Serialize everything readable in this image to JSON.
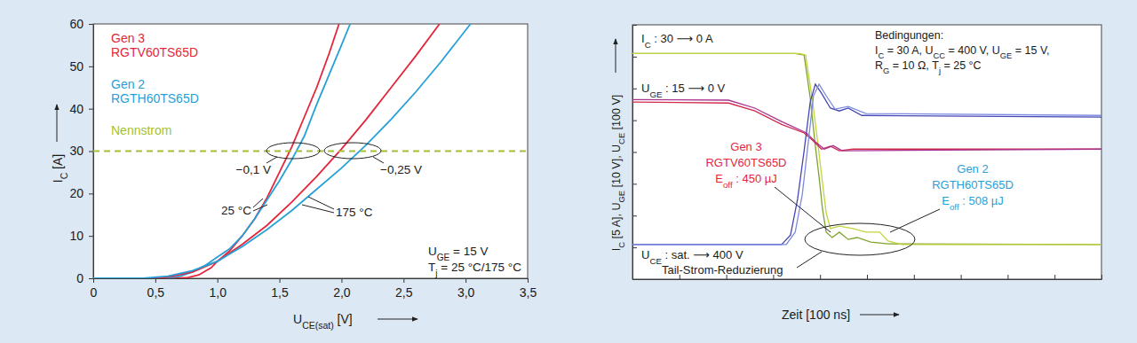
{
  "chart_data": [
    {
      "type": "line",
      "xlabel": [
        {
          "text": "U"
        },
        {
          "text": "CE(sat)",
          "sub": true
        },
        {
          "text": " [V]"
        }
      ],
      "ylabel": [
        {
          "text": "I"
        },
        {
          "text": "C",
          "sub": true
        },
        {
          "text": " [A]"
        }
      ],
      "xlim": [
        0,
        3.5
      ],
      "ylim": [
        0,
        60
      ],
      "xticks": [
        0,
        {
          "value": 0.5,
          "label": "0,5"
        },
        {
          "value": 1,
          "label": "1,0"
        },
        {
          "value": 1.5,
          "label": "1,5"
        },
        {
          "value": 2,
          "label": "2,0"
        },
        {
          "value": 2.5,
          "label": "2,5"
        },
        {
          "value": 3,
          "label": "3,0"
        },
        {
          "value": 3.5,
          "label": "3,5"
        }
      ],
      "yticks": [
        0,
        10,
        20,
        30,
        40,
        50,
        60
      ],
      "grid": false,
      "series": [
        {
          "name": "Gen 3",
          "model": "RGTV60TS65D",
          "color": "#e3263b",
          "x": [
            0,
            0.6,
            0.75,
            0.85,
            0.95,
            1.0,
            1.1,
            1.2,
            1.3,
            1.4,
            1.5,
            1.6,
            1.7,
            1.8,
            1.9,
            1.98
          ],
          "values": [
            0,
            0,
            0.1,
            0.8,
            2.5,
            4,
            6.5,
            10,
            14,
            19,
            25,
            31,
            38,
            45,
            53,
            60
          ]
        },
        {
          "name": "Gen 2",
          "model": "RGTH60TS65D",
          "color": "#27a0d8",
          "x": [
            0,
            0.5,
            0.6,
            0.7,
            0.8,
            0.9,
            1.0,
            1.1,
            1.2,
            1.3,
            1.4,
            1.5,
            1.6,
            1.7,
            1.8,
            1.9,
            2.0,
            2.07
          ],
          "values": [
            0,
            0,
            0.1,
            0.5,
            1.5,
            3,
            5,
            7,
            10,
            14,
            18.5,
            23,
            28,
            33.5,
            41,
            48,
            55,
            60
          ]
        },
        {
          "color": "#e3263b",
          "x": [
            0,
            0.5,
            0.6,
            0.8,
            1.0,
            1.1,
            1.2,
            1.4,
            1.6,
            1.8,
            2.0,
            2.2,
            2.4,
            2.6,
            2.79
          ],
          "values": [
            0,
            0,
            0.3,
            1.5,
            4,
            6,
            8,
            12.5,
            18,
            24,
            30.5,
            37.5,
            45,
            52.5,
            60
          ]
        },
        {
          "color": "#27a0d8",
          "x": [
            0,
            0.4,
            0.6,
            0.8,
            1.0,
            1.2,
            1.4,
            1.6,
            1.8,
            2.0,
            2.2,
            2.4,
            2.6,
            2.8,
            3.04
          ],
          "values": [
            0,
            0,
            0.5,
            1.8,
            4,
            7.5,
            11.5,
            16,
            21,
            26,
            31.5,
            37.5,
            44,
            51,
            60
          ]
        },
        {
          "name": "Nennstrom",
          "color": "#a3c12f",
          "line_style": "dashed",
          "x": [
            0,
            3.5
          ],
          "values": [
            30,
            30
          ]
        }
      ],
      "annotations": [
        "−0,1 V",
        "−0,25 V",
        "25 °C",
        "175 °C"
      ],
      "conditions": [
        [
          {
            "text": "U"
          },
          {
            "text": "GE",
            "sub": true
          },
          {
            "text": " = 15 V"
          }
        ],
        [
          {
            "text": "T"
          },
          {
            "text": "j",
            "sub": true
          },
          {
            "text": " = 25 °C/175 °C"
          }
        ]
      ]
    },
    {
      "type": "line",
      "xlabel": "Zeit [100 ns]",
      "ylabel": [
        {
          "text": "I"
        },
        {
          "text": "C",
          "sub": true
        },
        {
          "text": " [5 A], U"
        },
        {
          "text": "GE",
          "sub": true
        },
        {
          "text": " [10 V], U"
        },
        {
          "text": "CE",
          "sub": true
        },
        {
          "text": " [100 V]"
        }
      ],
      "xlim": [
        0,
        10
      ],
      "ylim": [
        0,
        8
      ],
      "xticks": [
        0,
        1,
        2,
        3,
        4,
        5,
        6,
        7,
        8,
        9,
        10
      ],
      "yticks": [
        0,
        1,
        2,
        3,
        4,
        5,
        6,
        7,
        8
      ],
      "tick_labels": false,
      "grid": false,
      "series": [
        {
          "color": "#7ea32e",
          "x": [
            0,
            3.47,
            3.66,
            3.79,
            3.9,
            3.98,
            4.05,
            4.13,
            4.26,
            4.41,
            4.6,
            4.79,
            5.08,
            5.45,
            10
          ],
          "values": [
            7.1,
            7.1,
            7.05,
            5.71,
            4.18,
            3.2,
            2.23,
            1.48,
            1.31,
            1.48,
            1.25,
            1.31,
            1.17,
            1.11,
            1.09
          ]
        },
        {
          "color": "#c3d43e",
          "x": [
            0,
            3.56,
            3.69,
            3.83,
            3.96,
            4.05,
            4.13,
            4.22,
            4.41,
            4.7,
            4.98,
            5.27,
            5.45,
            5.74,
            10
          ],
          "values": [
            7.1,
            7.1,
            7.05,
            5.71,
            4.18,
            3.06,
            2.09,
            1.59,
            1.67,
            1.59,
            1.48,
            1.48,
            1.2,
            1.09,
            1.09
          ]
        },
        {
          "color": "#d02a4c",
          "x": [
            0,
            2.05,
            2.61,
            3.18,
            3.66,
            3.84,
            4.03,
            4.22,
            4.41,
            4.7,
            10
          ],
          "values": [
            5.57,
            5.54,
            5.29,
            4.87,
            4.6,
            4.37,
            4.09,
            4.18,
            4.04,
            4.09,
            4.09
          ]
        },
        {
          "color": "#a8328f",
          "x": [
            0,
            2.05,
            2.61,
            3.18,
            3.71,
            3.9,
            4.09,
            4.28,
            4.47,
            10
          ],
          "values": [
            5.65,
            5.63,
            5.38,
            4.96,
            4.6,
            4.32,
            4.09,
            4.2,
            4.04,
            4.09
          ]
        },
        {
          "color": "#4646b4",
          "x": [
            0,
            3.18,
            3.37,
            3.52,
            3.66,
            3.79,
            3.9,
            4.03,
            4.22,
            4.41,
            4.6,
            4.89,
            10
          ],
          "values": [
            1.09,
            1.09,
            1.39,
            2.51,
            4.04,
            5.57,
            6.13,
            5.85,
            5.38,
            5.29,
            5.38,
            5.15,
            5.1
          ]
        },
        {
          "color": "#7b8be0",
          "x": [
            0,
            3.28,
            3.47,
            3.62,
            3.75,
            3.86,
            3.98,
            4.13,
            4.32,
            4.6,
            4.98,
            10
          ],
          "values": [
            1.09,
            1.09,
            1.48,
            2.65,
            4.32,
            5.77,
            6.13,
            5.77,
            5.35,
            5.43,
            5.21,
            5.15
          ]
        }
      ],
      "annotations": [
        [
          {
            "text": "I"
          },
          {
            "text": "C",
            "sub": true
          },
          {
            "text": " : 30 ⟶ 0 A"
          }
        ],
        [
          {
            "text": "U"
          },
          {
            "text": "GE",
            "sub": true
          },
          {
            "text": " : 15 ⟶ 0 V"
          }
        ],
        [
          {
            "text": "U"
          },
          {
            "text": "CE",
            "sub": true
          },
          {
            "text": " : sat. ⟶ 400 V"
          }
        ],
        "Tail-Strom-Reduzierung"
      ],
      "conditions": [
        "Bedingungen:",
        [
          {
            "text": "I"
          },
          {
            "text": "C",
            "sub": true
          },
          {
            "text": " = 30 A, U"
          },
          {
            "text": "CC",
            "sub": true
          },
          {
            "text": " = 400 V, U"
          },
          {
            "text": "GE",
            "sub": true
          },
          {
            "text": " = 15 V,"
          }
        ],
        [
          {
            "text": "R"
          },
          {
            "text": "G",
            "sub": true
          },
          {
            "text": " = 10 Ω, T"
          },
          {
            "text": "j",
            "sub": true
          },
          {
            "text": " = 25 °C"
          }
        ]
      ],
      "notes": [
        {
          "color": "#e3263b",
          "lines": [
            "Gen 3",
            "RGTV60TS65D",
            [
              {
                "text": "E"
              },
              {
                "text": "off",
                "sub": true
              },
              {
                "text": " : 450 µJ"
              }
            ]
          ]
        },
        {
          "color": "#27a0d8",
          "lines": [
            "Gen 2",
            "RGTH60TS65D",
            [
              {
                "text": "E"
              },
              {
                "text": "off",
                "sub": true
              },
              {
                "text": " : 508 µJ"
              }
            ]
          ]
        }
      ]
    }
  ]
}
